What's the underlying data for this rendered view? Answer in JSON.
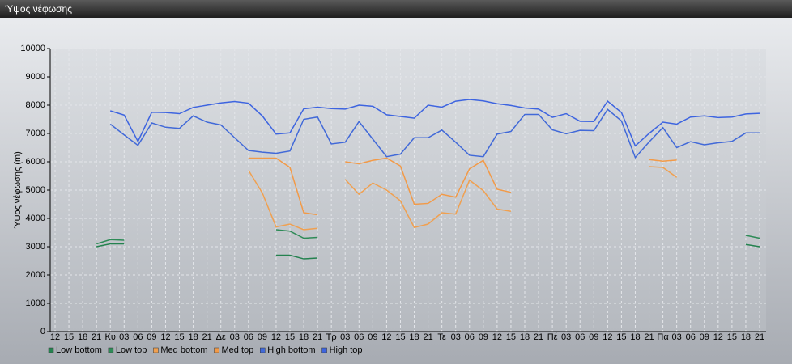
{
  "window": {
    "title": "Ύψος νέφωσης"
  },
  "chart_data": {
    "type": "line",
    "y_label": "Ύψος νέφωσης (m)",
    "categories": [
      "12",
      "15",
      "18",
      "21",
      "Κυ",
      "03",
      "06",
      "09",
      "12",
      "15",
      "18",
      "21",
      "Δε",
      "03",
      "06",
      "09",
      "12",
      "15",
      "18",
      "21",
      "Τρ",
      "03",
      "06",
      "09",
      "12",
      "15",
      "18",
      "21",
      "Τε",
      "03",
      "06",
      "09",
      "12",
      "15",
      "18",
      "21",
      "Πέ",
      "03",
      "06",
      "09",
      "12",
      "15",
      "18",
      "21",
      "Πα",
      "03",
      "06",
      "09",
      "12",
      "15",
      "18",
      "21"
    ],
    "ylim": [
      0,
      10000
    ],
    "yticks": [
      0,
      1000,
      2000,
      3000,
      4000,
      5000,
      6000,
      7000,
      8000,
      9000,
      10000
    ],
    "grid": true,
    "legend": "bottom-left",
    "series": [
      {
        "name": "Low bottom",
        "color": "#24824f",
        "values": [
          null,
          null,
          null,
          3000,
          3100,
          3100,
          null,
          null,
          null,
          null,
          null,
          null,
          null,
          null,
          null,
          null,
          2700,
          2700,
          2570,
          2600,
          null,
          null,
          null,
          null,
          null,
          null,
          null,
          null,
          null,
          null,
          null,
          null,
          null,
          null,
          null,
          null,
          null,
          null,
          null,
          null,
          null,
          null,
          null,
          null,
          null,
          null,
          null,
          null,
          null,
          null,
          3080,
          3000
        ]
      },
      {
        "name": "Low top",
        "color": "#2e8b57",
        "values": [
          null,
          null,
          null,
          3100,
          3250,
          3230,
          null,
          null,
          null,
          null,
          null,
          null,
          null,
          null,
          null,
          null,
          3600,
          3550,
          3300,
          3330,
          null,
          null,
          null,
          null,
          null,
          null,
          null,
          null,
          null,
          null,
          null,
          null,
          null,
          null,
          null,
          null,
          null,
          null,
          null,
          null,
          null,
          null,
          null,
          null,
          null,
          null,
          null,
          null,
          null,
          null,
          3400,
          3300
        ]
      },
      {
        "name": "Med bottom",
        "color": "#f0a050",
        "values": [
          null,
          null,
          null,
          null,
          null,
          null,
          null,
          null,
          null,
          null,
          null,
          null,
          null,
          null,
          5700,
          4900,
          3700,
          3800,
          3600,
          3650,
          null,
          5380,
          4850,
          5250,
          5000,
          4620,
          3680,
          3800,
          4200,
          4150,
          5350,
          4980,
          4330,
          4250,
          null,
          null,
          null,
          null,
          null,
          null,
          null,
          null,
          null,
          5830,
          5800,
          5450,
          null,
          null,
          null,
          null,
          null,
          null
        ]
      },
      {
        "name": "Med top",
        "color": "#f29a48",
        "values": [
          null,
          null,
          null,
          null,
          null,
          null,
          null,
          null,
          null,
          null,
          null,
          null,
          null,
          null,
          6130,
          6130,
          6130,
          5800,
          4200,
          4130,
          null,
          6000,
          5930,
          6050,
          6130,
          5850,
          4500,
          4530,
          4850,
          4750,
          5750,
          6050,
          5030,
          4920,
          null,
          null,
          null,
          null,
          null,
          null,
          null,
          null,
          null,
          6080,
          6020,
          6060,
          null,
          null,
          null,
          null,
          null,
          null
        ]
      },
      {
        "name": "High bottom",
        "color": "#4169d8",
        "values": [
          null,
          null,
          null,
          null,
          7330,
          6950,
          6580,
          7370,
          7220,
          7180,
          7620,
          7400,
          7300,
          6850,
          6400,
          6340,
          6300,
          6380,
          7500,
          7580,
          6630,
          6690,
          7420,
          6800,
          6180,
          6270,
          6850,
          6850,
          7120,
          6690,
          6230,
          6180,
          6980,
          7070,
          7670,
          7670,
          7130,
          6990,
          7110,
          7100,
          7850,
          7440,
          6150,
          6700,
          7210,
          6500,
          6710,
          6600,
          6670,
          6720,
          7020,
          7020
        ]
      },
      {
        "name": "High top",
        "color": "#3d64e0",
        "values": [
          null,
          null,
          null,
          null,
          7800,
          7650,
          6720,
          7750,
          7740,
          7700,
          7920,
          8000,
          8080,
          8130,
          8070,
          7620,
          6980,
          7020,
          7870,
          7930,
          7880,
          7860,
          8000,
          7960,
          7660,
          7600,
          7540,
          8000,
          7930,
          8140,
          8200,
          8150,
          8050,
          7990,
          7900,
          7860,
          7570,
          7700,
          7430,
          7420,
          8140,
          7740,
          6560,
          7000,
          7400,
          7330,
          7580,
          7620,
          7560,
          7580,
          7690,
          7710
        ]
      }
    ]
  }
}
